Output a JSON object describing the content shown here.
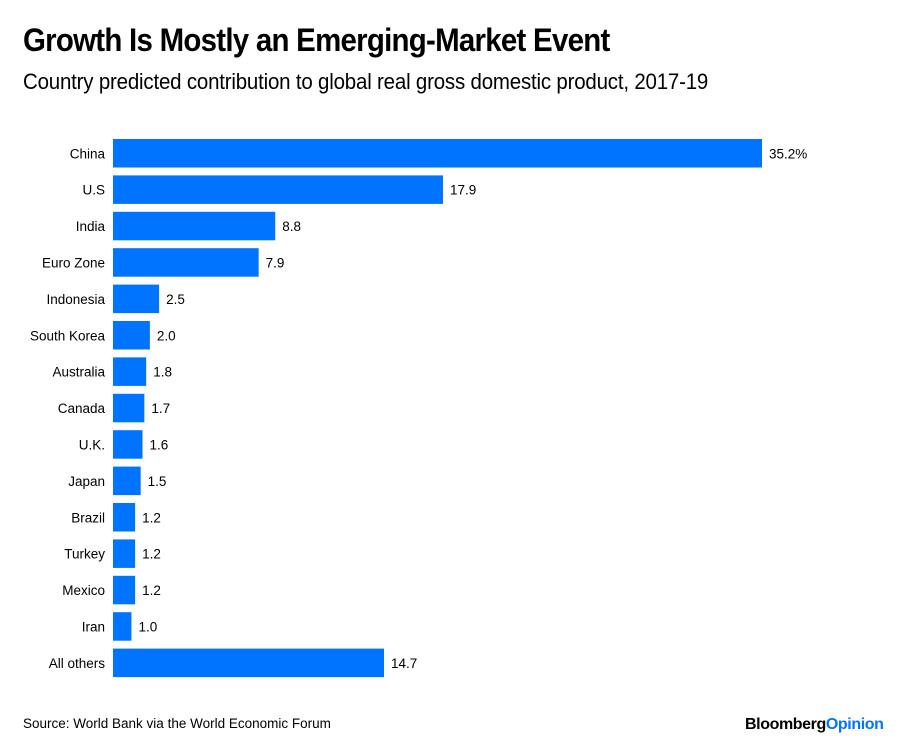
{
  "header": {
    "title": "Growth Is Mostly an Emerging-Market Event",
    "subtitle": "Country predicted contribution to global real gross domestic product, 2017-19"
  },
  "footer": {
    "source": "Source: World Bank via the World Economic Forum",
    "logo_primary": "Bloomberg",
    "logo_secondary": "Opinion"
  },
  "colors": {
    "bar": "#0073ff",
    "logo_accent": "#0073ff"
  },
  "chart_data": {
    "type": "bar",
    "orientation": "horizontal",
    "title": "Growth Is Mostly an Emerging-Market Event",
    "subtitle": "Country predicted contribution to global real gross domestic product, 2017-19",
    "xlabel": "",
    "ylabel": "",
    "unit": "%",
    "grid": false,
    "legend": "none",
    "xlim": [
      0,
      35.2
    ],
    "categories": [
      "China",
      "U.S",
      "India",
      "Euro Zone",
      "Indonesia",
      "South Korea",
      "Australia",
      "Canada",
      "U.K.",
      "Japan",
      "Brazil",
      "Turkey",
      "Mexico",
      "Iran",
      "All others"
    ],
    "values": [
      35.2,
      17.9,
      8.8,
      7.9,
      2.5,
      2.0,
      1.8,
      1.7,
      1.6,
      1.5,
      1.2,
      1.2,
      1.2,
      1.0,
      14.7
    ],
    "value_labels": [
      "35.2%",
      "17.9",
      "8.8",
      "7.9",
      "2.5",
      "2.0",
      "1.8",
      "1.7",
      "1.6",
      "1.5",
      "1.2",
      "1.2",
      "1.2",
      "1.0",
      "14.7"
    ]
  }
}
